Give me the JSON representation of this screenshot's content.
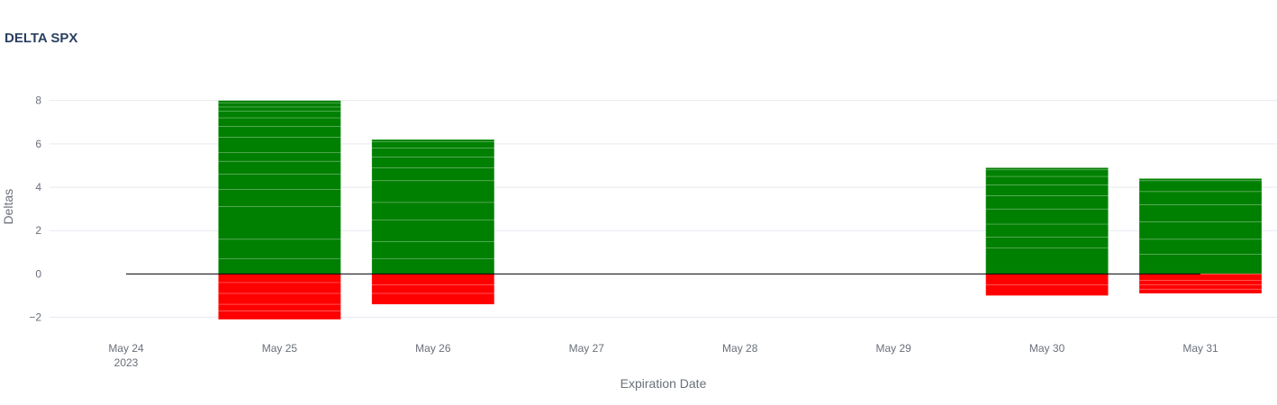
{
  "chart_data": {
    "type": "bar",
    "title": "DELTA SPX",
    "xlabel": "Expiration Date",
    "ylabel": "Deltas",
    "categories": [
      "May 24\n2023",
      "May 25",
      "May 26",
      "May 27",
      "May 28",
      "May 29",
      "May 30",
      "May 31"
    ],
    "ylim": [
      -2.6,
      8.9
    ],
    "yticks": [
      -2,
      0,
      2,
      4,
      6,
      8
    ],
    "ytick_labels": [
      "−2",
      "0",
      "2",
      "4",
      "6",
      "8"
    ],
    "grid": true,
    "legend": "none",
    "barmode": "relative",
    "colors": {
      "positive": "#008000",
      "negative": "#ff0000",
      "zero_line": "#000000",
      "grid": "#e6e9ef"
    },
    "series": [
      {
        "name": "",
        "color": "#008000",
        "segments": {
          "May 25": [
            0.7,
            0.9,
            1.5,
            0.8,
            0.7,
            0.6,
            0.4,
            0.7,
            0.5,
            0.4,
            0.3,
            0.2,
            0.2,
            0.1
          ],
          "May 26": [
            0.7,
            0.8,
            1.0,
            0.8,
            1.0,
            0.6,
            0.5,
            0.4,
            0.3,
            0.1
          ],
          "May 30": [
            1.2,
            0.5,
            0.6,
            0.7,
            0.6,
            0.5,
            0.4,
            0.3,
            0.1
          ],
          "May 31": [
            0.9,
            0.7,
            0.8,
            0.8,
            0.6,
            0.5,
            0.1
          ]
        },
        "totals": {
          "May 25": 8.0,
          "May 26": 6.2,
          "May 30": 4.9,
          "May 31": 4.3
        }
      },
      {
        "name": "",
        "color": "#ff0000",
        "segments": {
          "May 25": [
            -0.4,
            -0.5,
            -0.5,
            -0.3,
            -0.4
          ],
          "May 26": [
            -0.5,
            -0.4,
            -0.5
          ],
          "May 30": [
            -0.5,
            -0.5
          ],
          "May 31": [
            -0.3,
            -0.2,
            -0.2,
            -0.2
          ]
        },
        "totals": {
          "May 25": -2.1,
          "May 26": -1.4,
          "May 30": -1.0,
          "May 31": -0.9
        }
      }
    ],
    "zero_line": {
      "from": "May 24\n2023",
      "to": "May 31"
    }
  }
}
